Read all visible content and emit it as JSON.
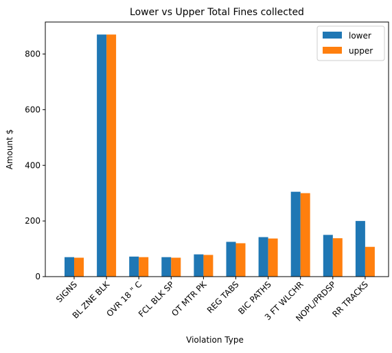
{
  "chart_data": {
    "type": "bar",
    "title": "Lower vs Upper Total Fines collected",
    "xlabel": "Violation Type",
    "ylabel": "Amount $",
    "ylim": [
      0,
      915
    ],
    "yticks": [
      0,
      200,
      400,
      600,
      800
    ],
    "categories": [
      "SIGNS",
      "BL ZNE BLK",
      "OVR 18 \" C",
      "FCL BLK SP",
      "OT MTR PK",
      "REG TABS",
      "BIC PATHS",
      "3 FT WLCHR",
      "NOPL/PRDSP",
      "RR TRACKS"
    ],
    "series": [
      {
        "name": "lower",
        "color": "#1f77b4",
        "values": [
          70,
          870,
          72,
          70,
          80,
          125,
          142,
          305,
          150,
          200
        ]
      },
      {
        "name": "upper",
        "color": "#ff7f0e",
        "values": [
          68,
          870,
          70,
          68,
          78,
          120,
          137,
          300,
          138,
          107
        ]
      }
    ],
    "legend": "top-right",
    "grid": false
  }
}
